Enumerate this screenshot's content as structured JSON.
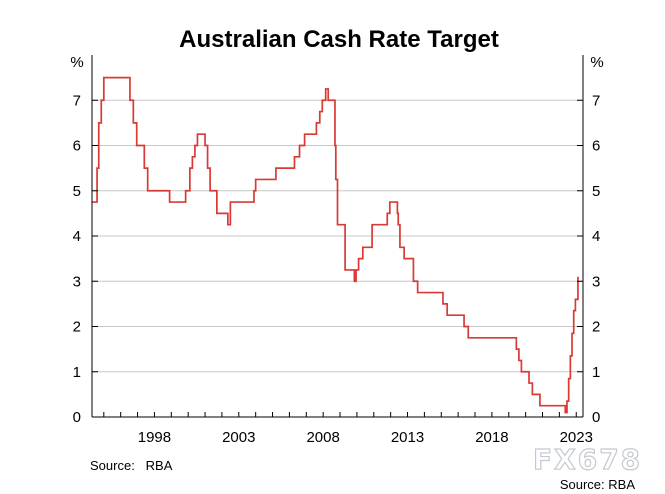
{
  "chart_data": {
    "type": "line",
    "title": "Australian Cash Rate Target",
    "y_unit_left": "%",
    "y_unit_right": "%",
    "ylim": [
      0,
      8
    ],
    "yticks": [
      "0",
      "1",
      "2",
      "3",
      "4",
      "5",
      "6",
      "7"
    ],
    "xlim": [
      1994.3,
      2023.4
    ],
    "xticks": [
      {
        "value": 1998,
        "label": "1998"
      },
      {
        "value": 2003,
        "label": "2003"
      },
      {
        "value": 2008,
        "label": "2008"
      },
      {
        "value": 2013,
        "label": "2013"
      },
      {
        "value": 2018,
        "label": "2018"
      },
      {
        "value": 2023,
        "label": "2023"
      }
    ],
    "grid": true,
    "source": "Source:   RBA",
    "series": [
      {
        "color": "#d83a35",
        "step": true,
        "x": [
          1994.3,
          1994.6,
          1994.7,
          1994.85,
          1995.0,
          1996.55,
          1996.75,
          1996.95,
          1997.05,
          1997.4,
          1997.6,
          1998.9,
          1999.85,
          2000.1,
          2000.25,
          2000.4,
          2000.55,
          2001.0,
          2001.15,
          2001.3,
          2001.7,
          2002.35,
          2002.5,
          2003.9,
          2004.0,
          2005.2,
          2006.3,
          2006.6,
          2006.9,
          2007.6,
          2007.8,
          2007.95,
          2008.15,
          2008.3,
          2008.7,
          2008.75,
          2008.85,
          2009.3,
          2009.85,
          2009.95,
          2010.1,
          2010.35,
          2010.9,
          2011.8,
          2011.95,
          2012.4,
          2012.45,
          2012.55,
          2012.8,
          2013.35,
          2013.6,
          2015.1,
          2015.35,
          2016.35,
          2016.6,
          2019.45,
          2019.6,
          2019.75,
          2020.2,
          2020.4,
          2020.85,
          2022.35,
          2022.45,
          2022.55,
          2022.65,
          2022.75,
          2022.85,
          2022.95,
          2023.1
        ],
        "values": [
          4.75,
          5.5,
          6.5,
          7.0,
          7.5,
          7.0,
          6.5,
          6.0,
          6.0,
          5.5,
          5.0,
          4.75,
          5.0,
          5.5,
          5.75,
          6.0,
          6.25,
          6.0,
          5.5,
          5.0,
          4.5,
          4.25,
          4.75,
          5.0,
          5.25,
          5.5,
          5.75,
          6.0,
          6.25,
          6.5,
          6.75,
          7.0,
          7.25,
          7.0,
          6.0,
          5.25,
          4.25,
          3.25,
          3.0,
          3.25,
          3.5,
          3.75,
          4.25,
          4.5,
          4.75,
          4.5,
          4.25,
          3.75,
          3.5,
          3.0,
          2.75,
          2.5,
          2.25,
          2.0,
          1.75,
          1.5,
          1.25,
          1.0,
          0.75,
          0.5,
          0.25,
          0.1,
          0.35,
          0.85,
          1.35,
          1.85,
          2.35,
          2.6,
          3.1
        ]
      }
    ]
  },
  "watermark": "FX678",
  "credit": "Source: RBA"
}
